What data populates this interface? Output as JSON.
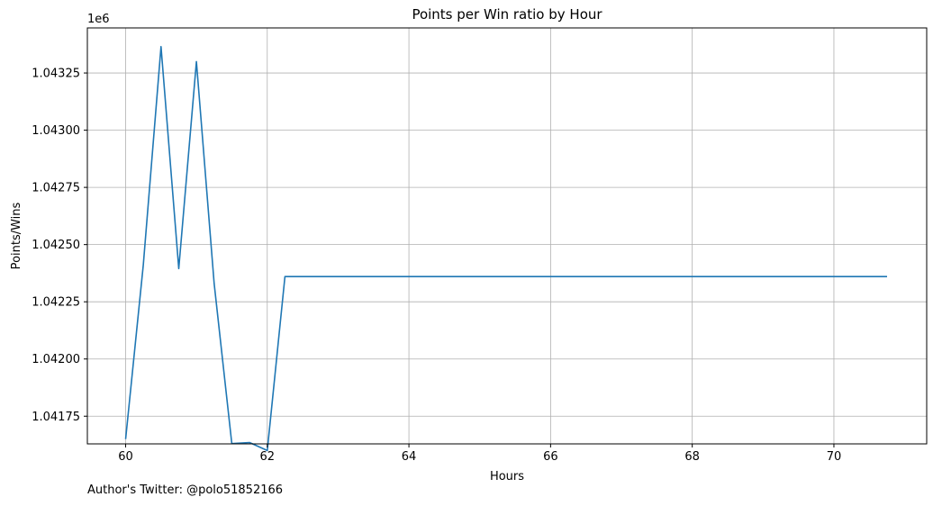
{
  "chart_data": {
    "type": "line",
    "title": "Points per Win ratio by Hour",
    "xlabel": "Hours",
    "ylabel": "Points/Wins",
    "y_offset_label": "1e6",
    "xlim": [
      59.46,
      71.31
    ],
    "ylim": [
      1041629,
      1043447
    ],
    "x_ticks": [
      60,
      62,
      64,
      66,
      68,
      70
    ],
    "y_ticks": [
      1041750,
      1042000,
      1042250,
      1042500,
      1042750,
      1043000,
      1043250
    ],
    "y_tick_labels": [
      "1.04175",
      "1.04200",
      "1.04225",
      "1.04250",
      "1.04275",
      "1.04300",
      "1.04325"
    ],
    "grid": true,
    "series": [
      {
        "color": "#1f77b4",
        "x": [
          60.0,
          60.25,
          60.5,
          60.75,
          61.0,
          61.25,
          61.5,
          61.75,
          62.0,
          62.25,
          62.5,
          62.75,
          63.0,
          63.25,
          63.5,
          63.75,
          64.0,
          64.25,
          64.5,
          64.75,
          65.0,
          65.25,
          65.5,
          65.75,
          66.0,
          66.25,
          66.5,
          66.75,
          67.0,
          67.25,
          67.5,
          67.75,
          68.0,
          68.25,
          68.5,
          68.75,
          69.0,
          69.25,
          69.5,
          69.75,
          70.0,
          70.25,
          70.5,
          70.75
        ],
        "y": [
          1041650,
          1042410,
          1043365,
          1042395,
          1043300,
          1042330,
          1041630,
          1041635,
          1041600,
          1042360,
          1042360,
          1042360,
          1042360,
          1042360,
          1042360,
          1042360,
          1042360,
          1042360,
          1042360,
          1042360,
          1042360,
          1042360,
          1042360,
          1042360,
          1042360,
          1042360,
          1042360,
          1042360,
          1042360,
          1042360,
          1042360,
          1042360,
          1042360,
          1042360,
          1042360,
          1042360,
          1042360,
          1042360,
          1042360,
          1042360,
          1042360,
          1042360,
          1042360,
          1042360
        ]
      }
    ]
  },
  "footnote": "Author's Twitter: @polo51852166"
}
